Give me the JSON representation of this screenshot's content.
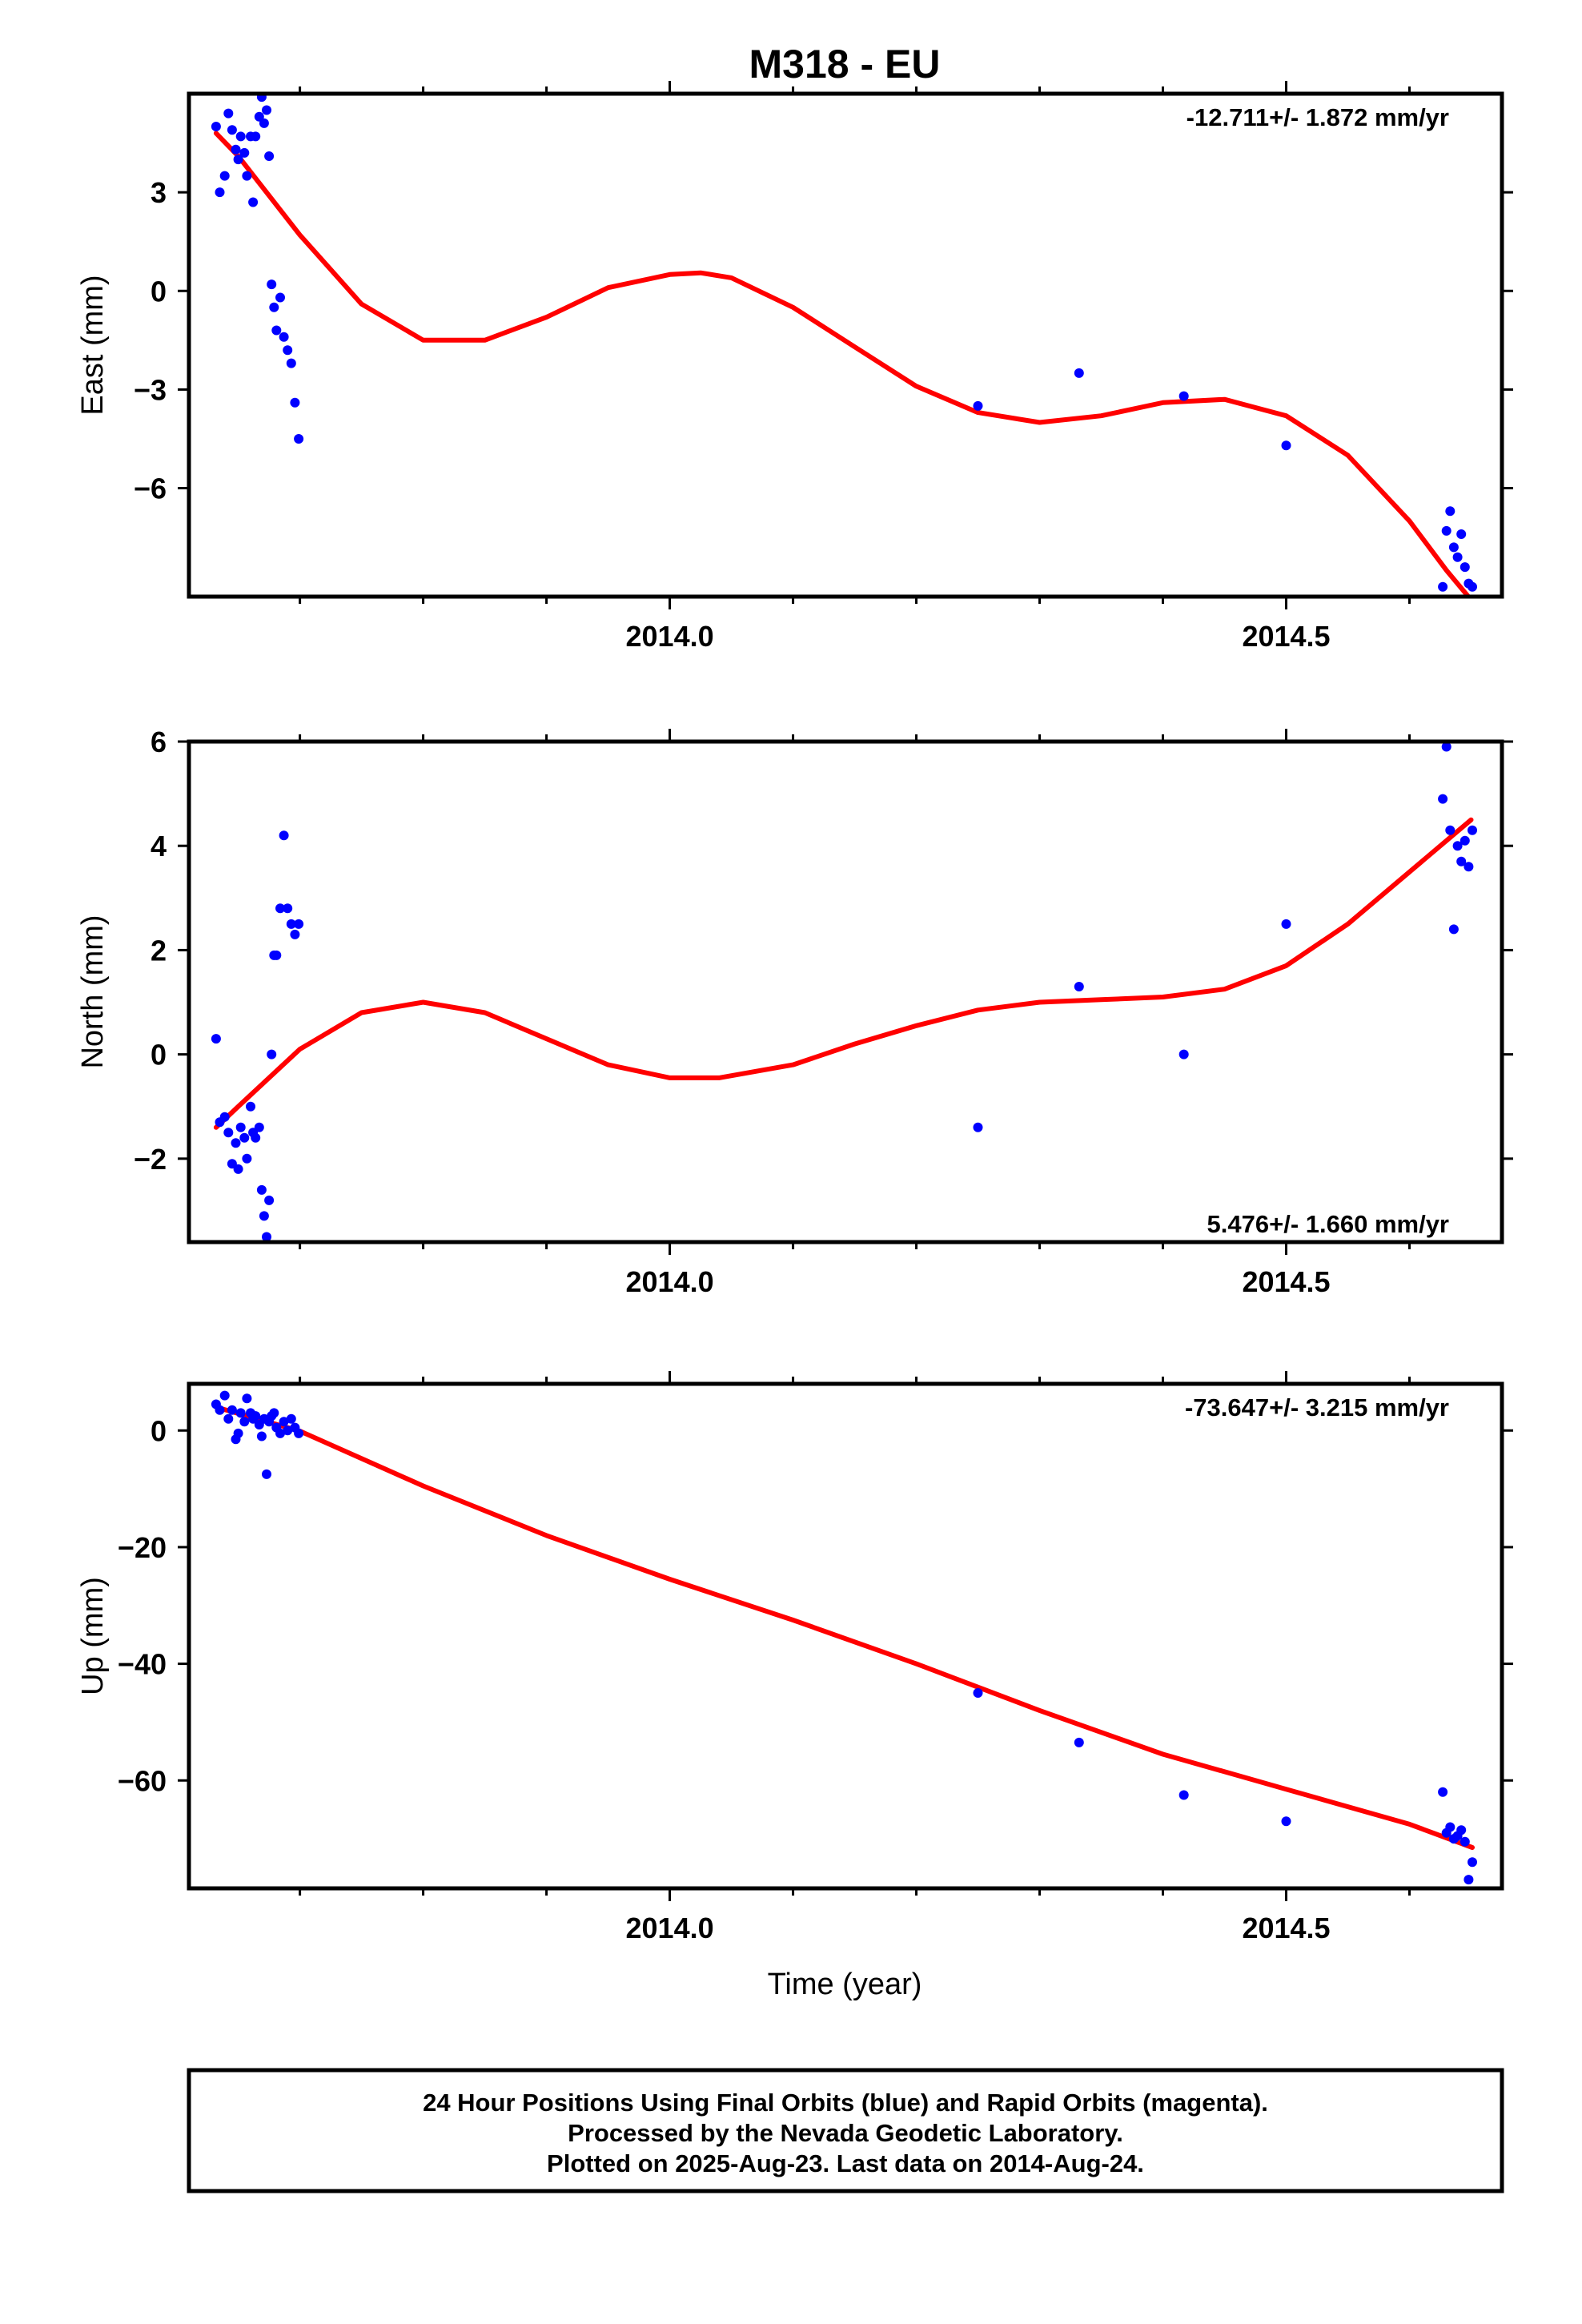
{
  "title": "M318 - EU",
  "xlabel": "Time (year)",
  "footer": {
    "lines": [
      "24 Hour Positions Using Final Orbits (blue) and Rapid Orbits (magenta).",
      "Processed by the Nevada Geodetic Laboratory.",
      "Plotted on 2025-Aug-23. Last data on 2014-Aug-24."
    ]
  },
  "colors": {
    "points": "#0000ff",
    "fit": "#ff0000",
    "frame": "#000000"
  },
  "chart_data": [
    {
      "type": "scatter",
      "name": "east",
      "ylabel": "East (mm)",
      "rate": "-12.711+/- 1.872 mm/yr",
      "rate_position": "top-right",
      "xlim": [
        2013.61,
        2014.675
      ],
      "ylim": [
        -9.3,
        6.0
      ],
      "xticks": [
        2014.0,
        2014.5
      ],
      "xtick_labels": [
        "2014.0",
        "2014.5"
      ],
      "xminor": [
        2013.7,
        2013.8,
        2013.9,
        2014.1,
        2014.2,
        2014.3,
        2014.4,
        2014.6
      ],
      "yticks": [
        3,
        0,
        -3,
        -6
      ],
      "ytick_labels": [
        "3",
        "0",
        "−3",
        "−6"
      ],
      "x": [
        2013.632,
        2013.635,
        2013.639,
        2013.642,
        2013.645,
        2013.648,
        2013.65,
        2013.652,
        2013.655,
        2013.657,
        2013.66,
        2013.662,
        2013.664,
        2013.667,
        2013.669,
        2013.671,
        2013.673,
        2013.675,
        2013.677,
        2013.679,
        2013.681,
        2013.684,
        2013.687,
        2013.69,
        2013.693,
        2013.696,
        2013.699,
        2014.25,
        2014.332,
        2014.417,
        2014.5,
        2014.627,
        2014.63,
        2014.633,
        2014.636,
        2014.639,
        2014.642,
        2014.645,
        2014.648,
        2014.651
      ],
      "y": [
        5.0,
        3.0,
        3.5,
        5.4,
        4.9,
        4.3,
        4.0,
        4.7,
        4.2,
        3.5,
        4.7,
        2.7,
        4.7,
        5.3,
        5.9,
        5.1,
        5.5,
        4.1,
        0.2,
        -0.5,
        -1.2,
        -0.2,
        -1.4,
        -1.8,
        -2.2,
        -3.4,
        -4.5,
        -3.5,
        -2.5,
        -3.2,
        -4.7,
        -9.0,
        -7.3,
        -6.7,
        -7.8,
        -8.1,
        -7.4,
        -8.4,
        -8.9,
        -9.0
      ],
      "fit": {
        "x": [
          2013.632,
          2013.65,
          2013.7,
          2013.75,
          2013.8,
          2013.85,
          2013.9,
          2013.95,
          2014.0,
          2014.025,
          2014.05,
          2014.1,
          2014.15,
          2014.2,
          2014.25,
          2014.3,
          2014.35,
          2014.4,
          2014.45,
          2014.5,
          2014.55,
          2014.6,
          2014.63,
          2014.65
        ],
        "y": [
          4.8,
          4.1,
          1.7,
          -0.4,
          -1.5,
          -1.5,
          -0.8,
          0.1,
          0.5,
          0.55,
          0.4,
          -0.5,
          -1.7,
          -2.9,
          -3.7,
          -4.0,
          -3.8,
          -3.4,
          -3.3,
          -3.8,
          -5.0,
          -7.0,
          -8.5,
          -9.4
        ]
      }
    },
    {
      "type": "scatter",
      "name": "north",
      "ylabel": "North (mm)",
      "rate": "5.476+/- 1.660 mm/yr",
      "rate_position": "bottom-right",
      "xlim": [
        2013.61,
        2014.675
      ],
      "ylim": [
        -3.6,
        6.0
      ],
      "xticks": [
        2014.0,
        2014.5
      ],
      "xtick_labels": [
        "2014.0",
        "2014.5"
      ],
      "xminor": [
        2013.7,
        2013.8,
        2013.9,
        2014.1,
        2014.2,
        2014.3,
        2014.4,
        2014.6
      ],
      "yticks": [
        6,
        4,
        2,
        0,
        -2
      ],
      "ytick_labels": [
        "6",
        "4",
        "2",
        "0",
        "−2"
      ],
      "x": [
        2013.632,
        2013.635,
        2013.639,
        2013.642,
        2013.645,
        2013.648,
        2013.65,
        2013.652,
        2013.655,
        2013.657,
        2013.66,
        2013.662,
        2013.664,
        2013.667,
        2013.669,
        2013.671,
        2013.673,
        2013.675,
        2013.677,
        2013.679,
        2013.681,
        2013.684,
        2013.687,
        2013.69,
        2013.693,
        2013.696,
        2013.699,
        2014.25,
        2014.332,
        2014.417,
        2014.5,
        2014.627,
        2014.63,
        2014.633,
        2014.636,
        2014.639,
        2014.642,
        2014.645,
        2014.648,
        2014.651
      ],
      "y": [
        0.3,
        -1.3,
        -1.2,
        -1.5,
        -2.1,
        -1.7,
        -2.2,
        -1.4,
        -1.6,
        -2.0,
        -1.0,
        -1.5,
        -1.6,
        -1.4,
        -2.6,
        -3.1,
        -3.5,
        -2.8,
        0.0,
        1.9,
        1.9,
        2.8,
        4.2,
        2.8,
        2.5,
        2.3,
        2.5,
        -1.4,
        1.3,
        0.0,
        2.5,
        4.9,
        5.9,
        4.3,
        2.4,
        4.0,
        3.7,
        4.1,
        3.6,
        4.3
      ],
      "fit": {
        "x": [
          2013.632,
          2013.65,
          2013.7,
          2013.75,
          2013.8,
          2013.85,
          2013.9,
          2013.95,
          2014.0,
          2014.04,
          2014.1,
          2014.15,
          2014.2,
          2014.25,
          2014.3,
          2014.35,
          2014.4,
          2014.45,
          2014.5,
          2014.55,
          2014.6,
          2014.65
        ],
        "y": [
          -1.4,
          -1.0,
          0.1,
          0.8,
          1.0,
          0.8,
          0.3,
          -0.2,
          -0.45,
          -0.45,
          -0.2,
          0.2,
          0.55,
          0.85,
          1.0,
          1.05,
          1.1,
          1.25,
          1.7,
          2.5,
          3.5,
          4.5
        ]
      }
    },
    {
      "type": "scatter",
      "name": "up",
      "ylabel": "Up (mm)",
      "rate": "-73.647+/- 3.215 mm/yr",
      "rate_position": "top-right",
      "xlim": [
        2013.61,
        2014.675
      ],
      "ylim": [
        -78.5,
        8.0
      ],
      "xticks": [
        2014.0,
        2014.5
      ],
      "xtick_labels": [
        "2014.0",
        "2014.5"
      ],
      "xminor": [
        2013.7,
        2013.8,
        2013.9,
        2014.1,
        2014.2,
        2014.3,
        2014.4,
        2014.6
      ],
      "yticks": [
        0,
        -20,
        -40,
        -60
      ],
      "ytick_labels": [
        "0",
        "−20",
        "−40",
        "−60"
      ],
      "x": [
        2013.632,
        2013.635,
        2013.639,
        2013.642,
        2013.645,
        2013.648,
        2013.65,
        2013.652,
        2013.655,
        2013.657,
        2013.66,
        2013.662,
        2013.664,
        2013.667,
        2013.669,
        2013.671,
        2013.673,
        2013.675,
        2013.677,
        2013.679,
        2013.681,
        2013.684,
        2013.687,
        2013.69,
        2013.693,
        2013.696,
        2013.699,
        2014.25,
        2014.332,
        2014.417,
        2014.5,
        2014.627,
        2014.63,
        2014.633,
        2014.636,
        2014.639,
        2014.642,
        2014.645,
        2014.648,
        2014.651
      ],
      "y": [
        4.5,
        3.5,
        6.0,
        2.0,
        3.5,
        -1.5,
        -0.5,
        3.0,
        1.5,
        5.5,
        3.0,
        2.0,
        2.5,
        1.0,
        -1.0,
        2.0,
        -7.5,
        1.5,
        2.5,
        3.0,
        0.5,
        -0.5,
        1.5,
        0.0,
        2.0,
        0.5,
        -0.5,
        -45.0,
        -53.5,
        -62.5,
        -67.0,
        -62.0,
        -69.0,
        -68.0,
        -70.0,
        -69.5,
        -68.5,
        -70.5,
        -77.0,
        -74.0
      ],
      "fit": {
        "x": [
          2013.632,
          2013.7,
          2013.8,
          2013.9,
          2014.0,
          2014.1,
          2014.2,
          2014.3,
          2014.4,
          2014.5,
          2014.6,
          2014.651
        ],
        "y": [
          4.0,
          -0.1,
          -9.5,
          -18.0,
          -25.5,
          -32.5,
          -40.0,
          -48.0,
          -55.5,
          -61.5,
          -67.5,
          -71.5
        ]
      }
    }
  ]
}
